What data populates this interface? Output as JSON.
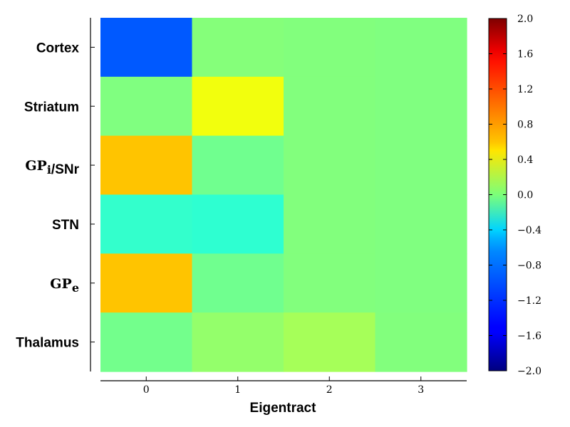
{
  "chart_data": {
    "type": "heatmap",
    "xlabel": "Eigentract",
    "x_ticks": [
      "0",
      "1",
      "2",
      "3"
    ],
    "rows": [
      {
        "label": "Cortex",
        "label_parts": [
          {
            "text": "Cortex"
          }
        ]
      },
      {
        "label": "Striatum",
        "label_parts": [
          {
            "text": "Striatum"
          }
        ]
      },
      {
        "label": "GPi/SNr",
        "label_parts": [
          {
            "text": "GP",
            "serif": true
          },
          {
            "text": "i",
            "sub": true,
            "serif": true
          },
          {
            "text": "/SNr"
          }
        ]
      },
      {
        "label": "STN",
        "label_parts": [
          {
            "text": "STN"
          }
        ]
      },
      {
        "label": "GPe",
        "label_parts": [
          {
            "text": "GP",
            "serif": true
          },
          {
            "text": "e",
            "sub": true,
            "serif": true
          }
        ]
      },
      {
        "label": "Thalamus",
        "label_parts": [
          {
            "text": "Thalamus"
          }
        ]
      }
    ],
    "values": [
      [
        -1.15,
        0.02,
        0.01,
        0.0
      ],
      [
        0.0,
        0.45,
        0.01,
        0.0
      ],
      [
        0.73,
        -0.06,
        0.01,
        0.0
      ],
      [
        -0.3,
        -0.32,
        0.01,
        0.0
      ],
      [
        0.73,
        -0.06,
        0.01,
        0.0
      ],
      [
        -0.05,
        0.08,
        0.15,
        0.01
      ]
    ],
    "colormap": "jet",
    "vmin": -2.0,
    "vmax": 2.0,
    "colorbar_ticks": [
      "2.0",
      "1.6",
      "1.2",
      "0.8",
      "0.4",
      "0.0",
      "−0.4",
      "−0.8",
      "−1.2",
      "−1.6",
      "−2.0"
    ],
    "colorbar_tick_values": [
      2.0,
      1.6,
      1.2,
      0.8,
      0.4,
      0.0,
      -0.4,
      -0.8,
      -1.2,
      -1.6,
      -2.0
    ],
    "legend": "colorbar-right"
  }
}
